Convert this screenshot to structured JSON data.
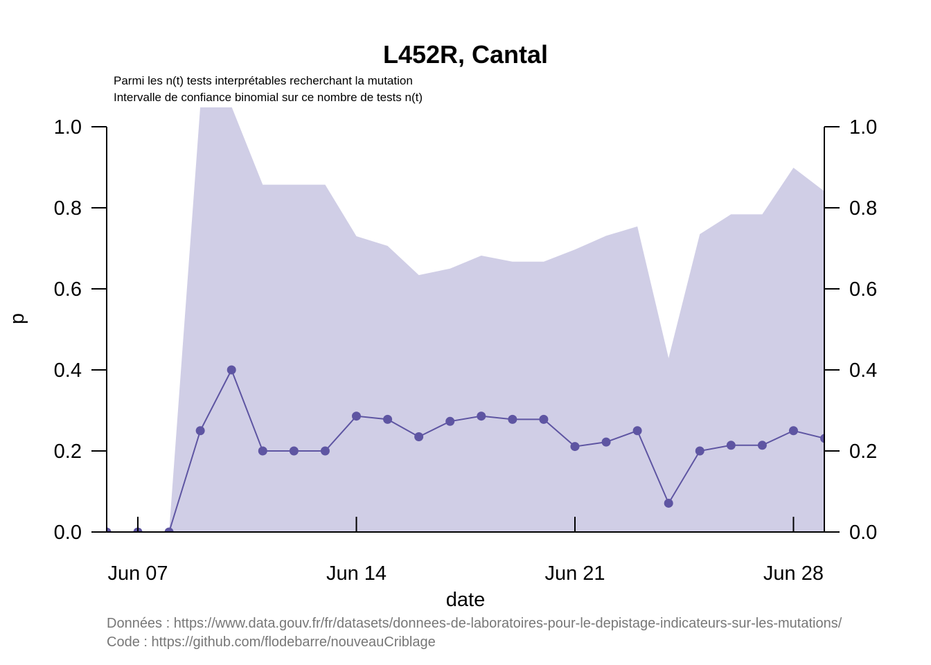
{
  "chart_data": {
    "type": "line",
    "title": "L452R, Cantal",
    "subtitle_lines": [
      "Parmi les n(t) tests interprétables recherchant la mutation",
      "Intervalle de confiance binomial sur ce nombre de tests n(t)"
    ],
    "xlabel": "date",
    "ylabel": "p",
    "x_tick_labels": [
      "Jun 07",
      "Jun 14",
      "Jun 21",
      "Jun 28"
    ],
    "x_tick_days": [
      7,
      14,
      21,
      28
    ],
    "y_ticks": [
      0.0,
      0.2,
      0.4,
      0.6,
      0.8,
      1.0
    ],
    "y_tick_labels": [
      "0.0",
      "0.2",
      "0.4",
      "0.6",
      "0.8",
      "1.0"
    ],
    "xlim_days": [
      6,
      29
    ],
    "ylim": [
      0,
      1
    ],
    "right_axis": true,
    "colors": {
      "line": "#5e55a2",
      "ribbon": "#d0cee6"
    },
    "series": [
      {
        "days": [
          6,
          7,
          8,
          9,
          10,
          11,
          12,
          13,
          14,
          15,
          16,
          17,
          18,
          19,
          20,
          21,
          22,
          23,
          24,
          25,
          26,
          27,
          28,
          29
        ],
        "values": [
          0,
          0,
          0,
          0.25,
          0.4,
          0.2,
          0.2,
          0.2,
          0.286,
          0.278,
          0.235,
          0.273,
          0.286,
          0.278,
          0.278,
          0.211,
          0.222,
          0.25,
          0.071,
          0.2,
          0.214,
          0.214,
          0.25,
          0.231
        ],
        "ci_upper": [
          0,
          0,
          0,
          1.05,
          1.05,
          0.857,
          0.857,
          0.857,
          0.73,
          0.706,
          0.634,
          0.65,
          0.682,
          0.667,
          0.667,
          0.697,
          0.731,
          0.754,
          0.429,
          0.735,
          0.784,
          0.784,
          0.899,
          0.84
        ],
        "ci_lower": [
          0,
          0,
          0,
          0,
          0,
          0,
          0,
          0,
          0,
          0,
          0,
          0,
          0,
          0,
          0,
          0,
          0,
          0,
          0,
          0,
          0,
          0,
          0,
          0
        ]
      }
    ]
  },
  "caption": {
    "data_source": "Données : https://www.data.gouv.fr/fr/datasets/donnees-de-laboratoires-pour-le-depistage-indicateurs-sur-les-mutations/",
    "code_source": "Code : https://github.com/flodebarre/nouveauCriblage"
  }
}
